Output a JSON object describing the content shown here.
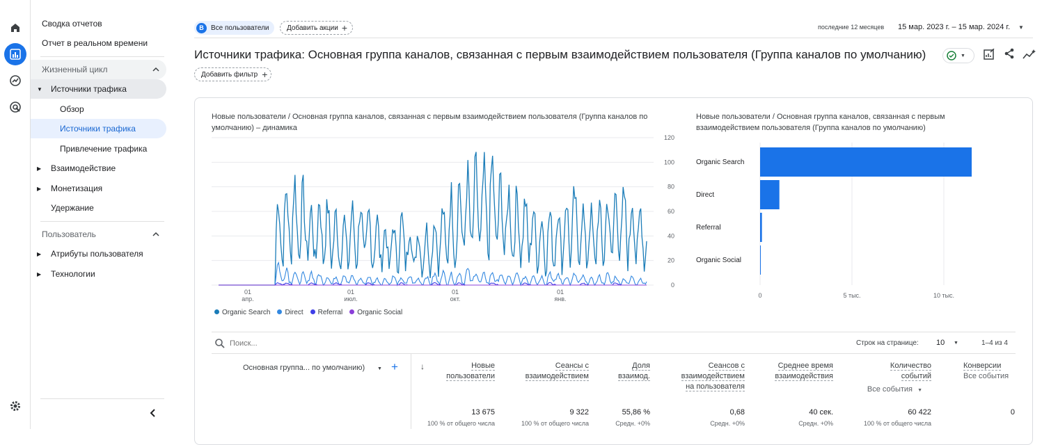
{
  "sidebar": {
    "top_items": [
      "Сводка отчетов",
      "Отчет в реальном времени"
    ],
    "section_lifecycle": "Жизненный цикл",
    "traffic_sources": "Источники трафика",
    "traffic_children": [
      "Обзор",
      "Источники трафика",
      "Привлечение трафика"
    ],
    "engagement": "Взаимодействие",
    "monetization": "Монетизация",
    "retention": "Удержание",
    "section_user": "Пользователь",
    "user_attributes": "Атрибуты пользователя",
    "tech": "Технологии"
  },
  "header": {
    "segment_badge": "B",
    "segment_label": "Все пользователи",
    "add_comparison": "Добавить акции",
    "date_preset": "последние 12 месяцев",
    "date_range": "15 мар. 2023 г. – 15 мар. 2024 г.",
    "title": "Источники трафика: Основная группа каналов, связанная с первым взаимодействием пользователя (Группа каналов по умолчанию)",
    "add_filter": "Добавить фильтр"
  },
  "line_chart": {
    "title": "Новые пользователи / Основная группа каналов, связанная с первым взаимодействием пользователя (Группа каналов по умолчанию) – динамика",
    "y_ticks": [
      "120",
      "100",
      "80",
      "60",
      "40",
      "20",
      "0"
    ],
    "x_ticks": [
      {
        "d": "01",
        "m": "апр."
      },
      {
        "d": "01",
        "m": "июл."
      },
      {
        "d": "01",
        "m": "окт."
      },
      {
        "d": "01",
        "m": "янв."
      }
    ],
    "legend": [
      "Organic Search",
      "Direct",
      "Referral",
      "Organic Social"
    ]
  },
  "bar_chart": {
    "title": "Новые пользователи / Основная группа каналов, связанная с первым взаимодействием пользователя (Группа каналов по умолчанию)",
    "x_ticks": [
      "0",
      "5 тыс.",
      "10 тыс."
    ]
  },
  "chart_data": [
    {
      "type": "line",
      "title": "Новые пользователи / Основная группа каналов, связанная с первым взаимодействием пользователя (Группа каналов по умолчанию) – динамика",
      "ylim": [
        0,
        120
      ],
      "series": [
        {
          "name": "Organic Search",
          "color": "#1a7cb8",
          "weekly_avg": [
            0,
            0,
            0,
            0,
            0,
            0,
            0,
            45,
            50,
            55,
            50,
            40,
            45,
            42,
            38,
            35,
            40,
            42,
            38,
            35,
            30,
            32,
            36,
            30,
            28,
            30,
            35,
            40,
            48,
            55,
            58,
            62,
            60,
            65,
            55,
            50,
            48,
            45,
            40,
            35,
            38,
            40,
            45,
            48,
            40,
            38,
            42,
            45,
            50,
            48,
            45,
            40
          ]
        },
        {
          "name": "Direct",
          "color": "#3388e0",
          "weekly_avg": [
            0,
            0,
            0,
            0,
            0,
            0,
            0,
            10,
            8,
            6,
            5,
            6,
            5,
            4,
            4,
            5,
            4,
            3,
            4,
            3,
            3,
            4,
            3,
            4,
            3,
            4,
            5,
            6,
            5,
            6,
            7,
            6,
            5,
            6,
            5,
            4,
            5,
            4,
            5,
            4,
            6,
            5,
            4,
            5,
            4,
            3,
            4,
            5,
            4,
            3,
            4,
            3
          ]
        },
        {
          "name": "Referral",
          "color": "#3f3fe8",
          "weekly_avg": [
            0,
            0,
            0,
            0,
            0,
            0,
            0,
            1,
            1,
            0,
            0,
            1,
            0,
            0,
            1,
            0,
            0,
            0,
            1,
            0,
            0,
            0,
            1,
            0,
            0,
            0,
            1,
            0,
            0,
            1,
            0,
            0,
            0,
            1,
            0,
            0,
            0,
            1,
            0,
            0,
            1,
            0,
            0,
            0,
            1,
            0,
            0,
            0,
            1,
            0,
            0,
            0
          ]
        },
        {
          "name": "Organic Social",
          "color": "#8b3fd8",
          "weekly_avg": [
            0,
            0,
            0,
            0,
            0,
            0,
            0,
            0,
            0,
            0,
            0,
            0,
            0,
            0,
            0,
            0,
            0,
            0,
            0,
            0,
            0,
            0,
            0,
            0,
            0,
            0,
            0,
            0,
            0,
            0,
            0,
            0,
            0,
            0,
            0,
            0,
            0,
            0,
            0,
            0,
            0,
            0,
            0,
            0,
            0,
            0,
            0,
            0,
            0,
            0,
            0,
            0
          ]
        }
      ]
    },
    {
      "type": "bar",
      "title": "Новые пользователи / Основная группа каналов, связанная с первым взаимодействием пользователя (Группа каналов по умолчанию)",
      "categories": [
        "Organic Search",
        "Direct",
        "Referral",
        "Organic Social"
      ],
      "values": [
        12500,
        1050,
        100,
        25
      ],
      "xlim": [
        0,
        12500
      ],
      "color": "#1a73e8"
    }
  ],
  "table": {
    "search_placeholder": "Поиск...",
    "rows_per_page_label": "Строк на странице:",
    "rows_per_page": "10",
    "pagination": "1–4 из 4",
    "dimension_label": "Основная группа... по умолчанию)",
    "headers": [
      {
        "l1": "Новые",
        "l2": "пользователи",
        "l3": ""
      },
      {
        "l1": "Сеансы с",
        "l2": "взаимодействием",
        "l3": ""
      },
      {
        "l1": "Доля",
        "l2": "взаимод.",
        "l3": ""
      },
      {
        "l1": "Сеансов с",
        "l2": "взаимодействием",
        "l3": "на пользователя"
      },
      {
        "l1": "Среднее время",
        "l2": "взаимодействия",
        "l3": ""
      },
      {
        "l1": "Количество",
        "l2": "событий",
        "l3": "Все события"
      },
      {
        "l1": "Конверсии",
        "l2": "Все события",
        "l3": ""
      }
    ],
    "totals": [
      "13 675",
      "9 322",
      "55,86 %",
      "0,68",
      "40 сек.",
      "60 422",
      "0"
    ],
    "totals_sub": [
      "100 % от общего числа",
      "100 % от общего числа",
      "Средн. +0%",
      "Средн. +0%",
      "Средн. +0%",
      "100 % от общего числа",
      ""
    ]
  }
}
